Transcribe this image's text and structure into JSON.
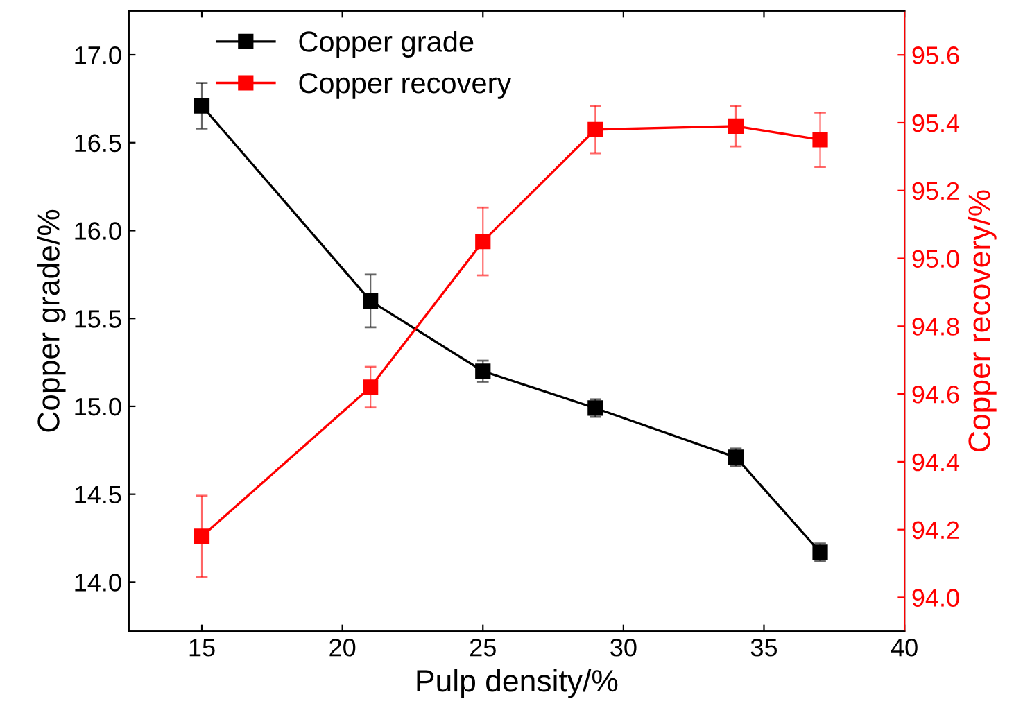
{
  "chart_data": {
    "type": "line",
    "xlabel": "Pulp density/%",
    "ylabel": "Copper grade/%",
    "y2label": "Copper recovery/%",
    "x": [
      15,
      21,
      25,
      29,
      34,
      37
    ],
    "series": [
      {
        "name": "Copper grade",
        "color": "#000000",
        "values": [
          16.71,
          15.6,
          15.2,
          14.99,
          14.71,
          14.17
        ],
        "errors": [
          0.13,
          0.15,
          0.06,
          0.05,
          0.05,
          0.05
        ]
      },
      {
        "name": "Copper recovery",
        "color": "#ff0000",
        "axis": "y2",
        "values": [
          94.18,
          94.62,
          95.05,
          95.38,
          95.39,
          95.35
        ],
        "errors": [
          0.12,
          0.06,
          0.1,
          0.07,
          0.06,
          0.08
        ]
      }
    ],
    "xlim": [
      12.4,
      40
    ],
    "xticks": [
      15,
      20,
      25,
      30,
      35,
      40
    ],
    "ylim": [
      13.72,
      17.25
    ],
    "yticks": [
      {
        "value": 14.0,
        "label": "14.0"
      },
      {
        "value": 14.5,
        "label": "14.5"
      },
      {
        "value": 15.0,
        "label": "15.0"
      },
      {
        "value": 15.5,
        "label": "15.5"
      },
      {
        "value": 16.0,
        "label": "16.0"
      },
      {
        "value": 16.5,
        "label": "16.5"
      },
      {
        "value": 17.0,
        "label": "17.0"
      }
    ],
    "y2lim": [
      93.9,
      95.73
    ],
    "y2ticks": [
      {
        "value": 94.0,
        "label": "94.0"
      },
      {
        "value": 94.2,
        "label": "94.2"
      },
      {
        "value": 94.4,
        "label": "94.4"
      },
      {
        "value": 94.6,
        "label": "94.6"
      },
      {
        "value": 94.8,
        "label": "94.8"
      },
      {
        "value": 95.0,
        "label": "95.0"
      },
      {
        "value": 95.2,
        "label": "95.2"
      },
      {
        "value": 95.4,
        "label": "95.4"
      },
      {
        "value": 95.6,
        "label": "95.6"
      }
    ],
    "marker": "square",
    "line_style": "solid",
    "legend": "top left",
    "grid": false
  }
}
